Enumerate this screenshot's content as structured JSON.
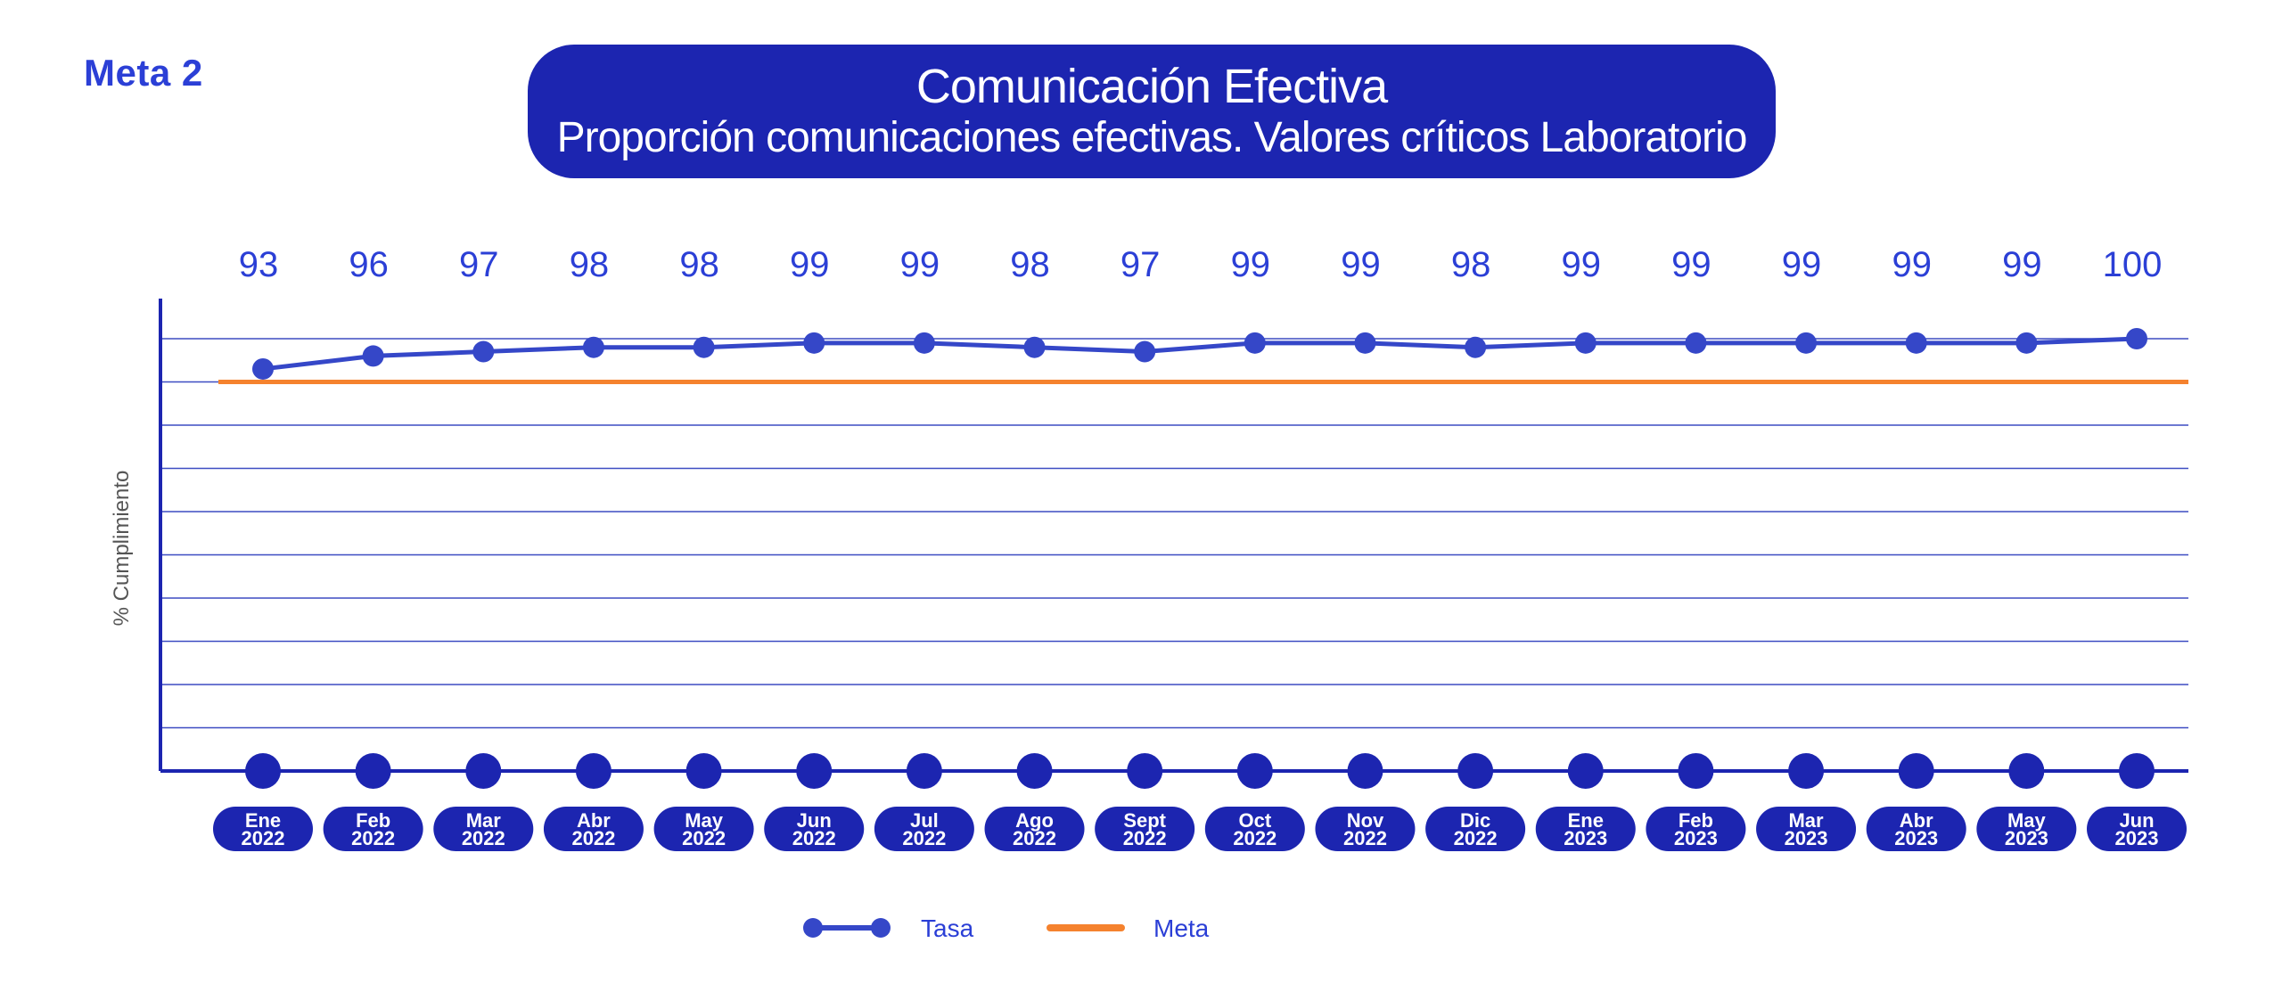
{
  "header": {
    "meta_tag": "Meta 2",
    "title": "Comunicación Efectiva",
    "subtitle": "Proporción comunicaciones efectivas. Valores críticos Laboratorio"
  },
  "colors": {
    "title_box": "#1c25b0",
    "series_tasa": "#3547c8",
    "series_meta": "#f5822e",
    "grid": "#3d4cc2",
    "axis": "#1c25b0",
    "pill": "#1c25b0",
    "label": "#2b3fd6"
  },
  "chart_data": {
    "type": "line",
    "ylabel": "% Cumplimiento",
    "ylim": [
      0,
      100
    ],
    "grid": true,
    "legend_position": "bottom-center",
    "categories": [
      [
        "Ene",
        "2022"
      ],
      [
        "Feb",
        "2022"
      ],
      [
        "Mar",
        "2022"
      ],
      [
        "Abr",
        "2022"
      ],
      [
        "May",
        "2022"
      ],
      [
        "Jun",
        "2022"
      ],
      [
        "Jul",
        "2022"
      ],
      [
        "Ago",
        "2022"
      ],
      [
        "Sept",
        "2022"
      ],
      [
        "Oct",
        "2022"
      ],
      [
        "Nov",
        "2022"
      ],
      [
        "Dic",
        "2022"
      ],
      [
        "Ene",
        "2023"
      ],
      [
        "Feb",
        "2023"
      ],
      [
        "Mar",
        "2023"
      ],
      [
        "Abr",
        "2023"
      ],
      [
        "May",
        "2023"
      ],
      [
        "Jun",
        "2023"
      ]
    ],
    "series": [
      {
        "name": "Tasa",
        "type": "line",
        "values": [
          93,
          96,
          97,
          98,
          98,
          99,
          99,
          98,
          97,
          99,
          99,
          98,
          99,
          99,
          99,
          99,
          99,
          100
        ]
      },
      {
        "name": "Meta",
        "type": "target-line",
        "value": 90
      }
    ]
  }
}
